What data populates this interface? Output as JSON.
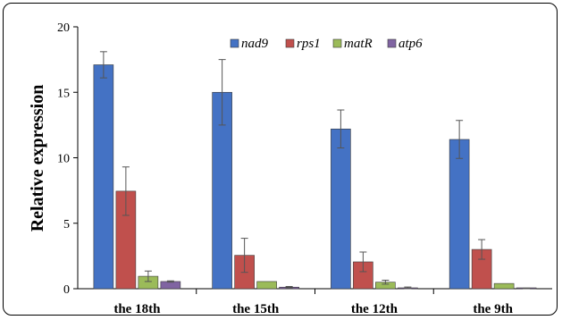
{
  "chart_data": {
    "type": "bar",
    "title": "",
    "xlabel": "",
    "ylabel": "Relative expression",
    "ylim": [
      0,
      20
    ],
    "yticks": [
      "0",
      "5",
      "10",
      "15",
      "20"
    ],
    "categories": [
      "the 18th",
      "the 15th",
      "the 12th",
      "the 9th"
    ],
    "legend_position": "top-center",
    "grid": false,
    "series": [
      {
        "name": "nad9",
        "color": "#4472c4",
        "values": [
          17.1,
          15.0,
          12.2,
          11.4
        ],
        "errors": [
          1.0,
          2.5,
          1.45,
          1.45
        ]
      },
      {
        "name": "rps1",
        "color": "#c0504d",
        "values": [
          7.45,
          2.55,
          2.05,
          3.0
        ],
        "errors": [
          1.85,
          1.3,
          0.75,
          0.75
        ]
      },
      {
        "name": "matR",
        "color": "#9bbb59",
        "values": [
          0.95,
          0.55,
          0.5,
          0.4
        ],
        "errors": [
          0.4,
          0.0,
          0.15,
          0.0
        ]
      },
      {
        "name": "atp6",
        "color": "#8064a2",
        "values": [
          0.55,
          0.12,
          0.05,
          0.02
        ],
        "errors": [
          0.05,
          0.05,
          0.08,
          0.02
        ]
      }
    ]
  }
}
